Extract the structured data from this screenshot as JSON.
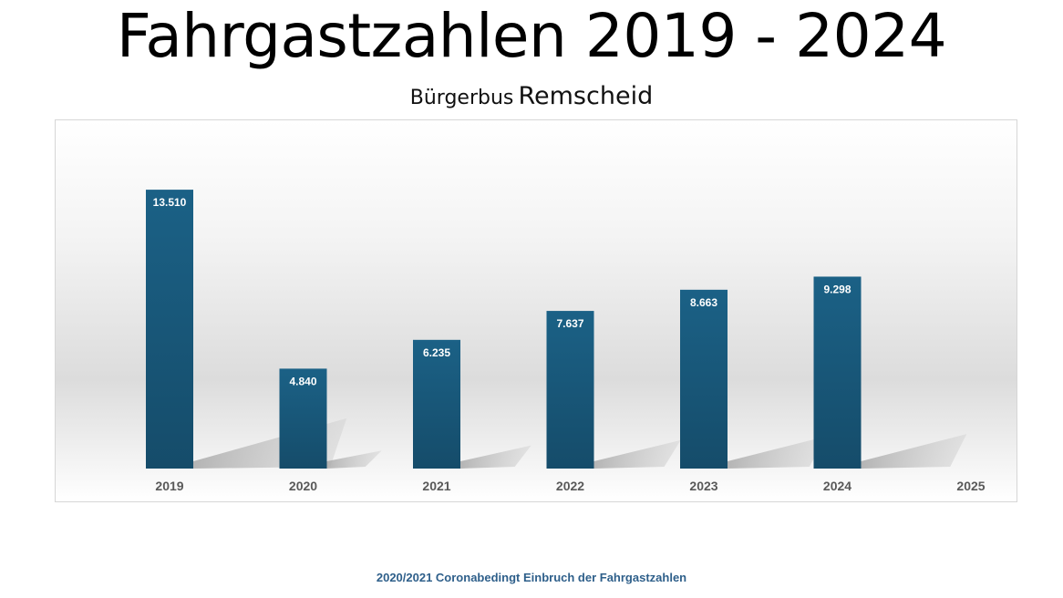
{
  "chart_data": {
    "type": "bar",
    "title_part1": "Fahrgastzahlen",
    "title_part2": "2019 - 2024",
    "subtitle_part1": "Bürgerbus",
    "subtitle_part2": "Remscheid",
    "categories": [
      "2019",
      "2020",
      "2021",
      "2022",
      "2023",
      "2024",
      "2025"
    ],
    "values": [
      13510,
      4840,
      6235,
      7637,
      8663,
      9298,
      null
    ],
    "value_labels": [
      "13.510",
      "4.840",
      "6.235",
      "7.637",
      "8.663",
      "9.298",
      ""
    ],
    "ylim": [
      0,
      14000
    ],
    "grid": false,
    "legend": "none",
    "bar_color_top": "#1b6186",
    "bar_color_bottom": "#154c6a",
    "annotation": "2020/2021 Coronabedingt Einbruch der Fahrgastzahlen"
  },
  "colors": {
    "footnote": "#2e5f8a",
    "tick_label": "#595959"
  }
}
